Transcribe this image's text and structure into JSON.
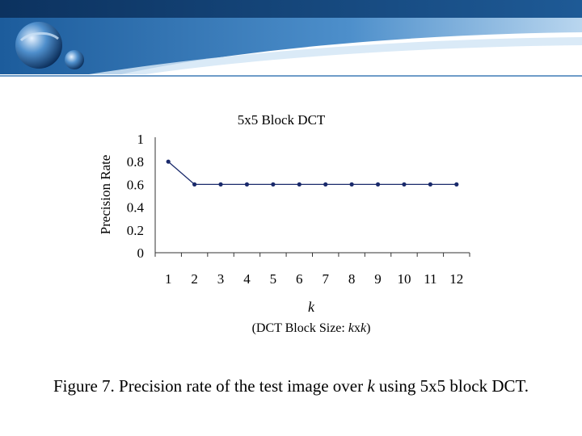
{
  "theme": {
    "banner_dark": "#0f3e73",
    "banner_mid": "#2a6fb2",
    "banner_light": "#9ec6e8",
    "series_color": "#1a2a6b"
  },
  "logo": {
    "icon": "globe-logo-icon"
  },
  "chart_data": {
    "type": "line",
    "title": "5x5 Block DCT",
    "ylabel": "Precision Rate",
    "xlabel_main": "k",
    "xlabel_sub_prefix": "(DCT Block Size: ",
    "xlabel_sub_k1": "k",
    "xlabel_sub_x": "x",
    "xlabel_sub_k2": "k",
    "xlabel_sub_suffix": ")",
    "x": [
      1,
      2,
      3,
      4,
      5,
      6,
      7,
      8,
      9,
      10,
      11,
      12
    ],
    "x_tick_labels": [
      "1",
      "2",
      "3",
      "4",
      "5",
      "6",
      "7",
      "8",
      "9",
      "10",
      "11",
      "12"
    ],
    "values": [
      0.8,
      0.6,
      0.6,
      0.6,
      0.6,
      0.6,
      0.6,
      0.6,
      0.6,
      0.6,
      0.6,
      0.6
    ],
    "ylim": [
      0,
      1
    ],
    "y_ticks": [
      0,
      0.2,
      0.4,
      0.6,
      0.8,
      1
    ],
    "y_tick_labels": [
      "0",
      "0.2",
      "0.4",
      "0.6",
      "0.8",
      "1"
    ],
    "grid": false,
    "legend": "none"
  },
  "caption": {
    "prefix": "Figure 7.  Precision rate of the test image over ",
    "k": "k",
    "suffix": " using 5x5 block DCT."
  }
}
